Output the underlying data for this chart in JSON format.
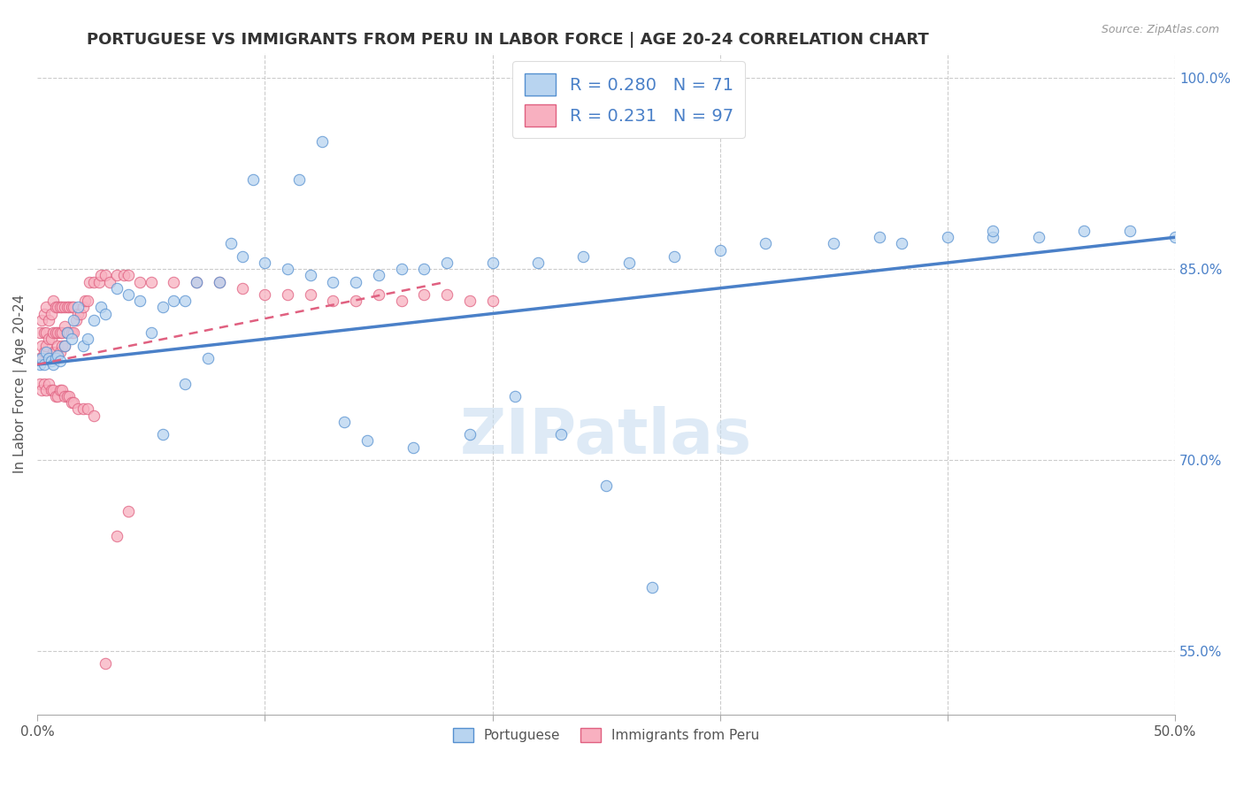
{
  "title": "PORTUGUESE VS IMMIGRANTS FROM PERU IN LABOR FORCE | AGE 20-24 CORRELATION CHART",
  "source": "Source: ZipAtlas.com",
  "ylabel": "In Labor Force | Age 20-24",
  "xlim": [
    0.0,
    0.5
  ],
  "ylim": [
    0.5,
    1.02
  ],
  "ytick_right_labels": [
    "100.0%",
    "85.0%",
    "70.0%",
    "55.0%"
  ],
  "ytick_right_values": [
    1.0,
    0.85,
    0.7,
    0.55
  ],
  "legend_blue_r": "R = 0.280",
  "legend_blue_n": "N = 71",
  "legend_pink_r": "R = 0.231",
  "legend_pink_n": "N = 97",
  "blue_fill": "#b8d4f0",
  "blue_edge": "#5590d0",
  "pink_fill": "#f8b0c0",
  "pink_edge": "#e06080",
  "blue_line": "#4a80c8",
  "pink_line": "#e06080",
  "watermark_color": "#c8ddf0",
  "title_fontsize": 13,
  "axis_label_fontsize": 11,
  "tick_fontsize": 11,
  "legend_fontsize": 14,
  "blue_x": [
    0.001,
    0.002,
    0.003,
    0.004,
    0.005,
    0.006,
    0.007,
    0.008,
    0.009,
    0.01,
    0.012,
    0.013,
    0.015,
    0.016,
    0.018,
    0.02,
    0.022,
    0.025,
    0.028,
    0.03,
    0.035,
    0.04,
    0.045,
    0.05,
    0.055,
    0.06,
    0.065,
    0.07,
    0.08,
    0.09,
    0.1,
    0.11,
    0.12,
    0.13,
    0.14,
    0.15,
    0.16,
    0.17,
    0.18,
    0.2,
    0.22,
    0.24,
    0.26,
    0.28,
    0.3,
    0.32,
    0.35,
    0.37,
    0.4,
    0.42,
    0.44,
    0.46,
    0.48,
    0.5,
    0.38,
    0.42,
    0.115,
    0.125,
    0.095,
    0.085,
    0.075,
    0.065,
    0.055,
    0.165,
    0.145,
    0.135,
    0.19,
    0.21,
    0.23,
    0.25,
    0.27
  ],
  "blue_y": [
    0.775,
    0.78,
    0.775,
    0.785,
    0.78,
    0.778,
    0.775,
    0.78,
    0.782,
    0.778,
    0.79,
    0.8,
    0.795,
    0.81,
    0.82,
    0.79,
    0.795,
    0.81,
    0.82,
    0.815,
    0.835,
    0.83,
    0.825,
    0.8,
    0.82,
    0.825,
    0.825,
    0.84,
    0.84,
    0.86,
    0.855,
    0.85,
    0.845,
    0.84,
    0.84,
    0.845,
    0.85,
    0.85,
    0.855,
    0.855,
    0.855,
    0.86,
    0.855,
    0.86,
    0.865,
    0.87,
    0.87,
    0.875,
    0.875,
    0.875,
    0.875,
    0.88,
    0.88,
    0.875,
    0.87,
    0.88,
    0.92,
    0.95,
    0.92,
    0.87,
    0.78,
    0.76,
    0.72,
    0.71,
    0.715,
    0.73,
    0.72,
    0.75,
    0.72,
    0.68,
    0.6
  ],
  "pink_x": [
    0.001,
    0.001,
    0.002,
    0.002,
    0.003,
    0.003,
    0.003,
    0.004,
    0.004,
    0.004,
    0.005,
    0.005,
    0.005,
    0.006,
    0.006,
    0.006,
    0.007,
    0.007,
    0.007,
    0.008,
    0.008,
    0.008,
    0.009,
    0.009,
    0.009,
    0.01,
    0.01,
    0.01,
    0.011,
    0.011,
    0.011,
    0.012,
    0.012,
    0.012,
    0.013,
    0.013,
    0.014,
    0.014,
    0.015,
    0.015,
    0.016,
    0.016,
    0.017,
    0.018,
    0.019,
    0.02,
    0.021,
    0.022,
    0.023,
    0.025,
    0.027,
    0.028,
    0.03,
    0.032,
    0.035,
    0.038,
    0.04,
    0.045,
    0.05,
    0.06,
    0.07,
    0.08,
    0.09,
    0.1,
    0.11,
    0.12,
    0.13,
    0.14,
    0.15,
    0.16,
    0.17,
    0.18,
    0.19,
    0.2,
    0.001,
    0.002,
    0.003,
    0.004,
    0.005,
    0.006,
    0.007,
    0.008,
    0.009,
    0.01,
    0.011,
    0.012,
    0.013,
    0.014,
    0.015,
    0.016,
    0.018,
    0.02,
    0.022,
    0.025,
    0.03,
    0.035,
    0.04
  ],
  "pink_y": [
    0.78,
    0.8,
    0.79,
    0.81,
    0.785,
    0.8,
    0.815,
    0.79,
    0.8,
    0.82,
    0.78,
    0.795,
    0.81,
    0.78,
    0.795,
    0.815,
    0.785,
    0.8,
    0.825,
    0.785,
    0.8,
    0.82,
    0.79,
    0.8,
    0.82,
    0.785,
    0.8,
    0.82,
    0.79,
    0.8,
    0.82,
    0.79,
    0.805,
    0.82,
    0.8,
    0.82,
    0.8,
    0.82,
    0.8,
    0.82,
    0.8,
    0.82,
    0.81,
    0.815,
    0.815,
    0.82,
    0.825,
    0.825,
    0.84,
    0.84,
    0.84,
    0.845,
    0.845,
    0.84,
    0.845,
    0.845,
    0.845,
    0.84,
    0.84,
    0.84,
    0.84,
    0.84,
    0.835,
    0.83,
    0.83,
    0.83,
    0.825,
    0.825,
    0.83,
    0.825,
    0.83,
    0.83,
    0.825,
    0.825,
    0.76,
    0.755,
    0.76,
    0.755,
    0.76,
    0.755,
    0.755,
    0.75,
    0.75,
    0.755,
    0.755,
    0.75,
    0.75,
    0.75,
    0.745,
    0.745,
    0.74,
    0.74,
    0.74,
    0.735,
    0.54,
    0.64,
    0.66
  ]
}
